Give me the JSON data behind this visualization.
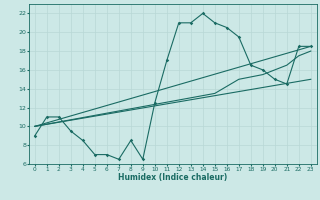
{
  "xlabel": "Humidex (Indice chaleur)",
  "bg_color": "#cce8e6",
  "line_color": "#1a6b63",
  "grid_color": "#b8d8d6",
  "xlim": [
    -0.5,
    23.5
  ],
  "ylim": [
    6,
    23
  ],
  "xticks": [
    0,
    1,
    2,
    3,
    4,
    5,
    6,
    7,
    8,
    9,
    10,
    11,
    12,
    13,
    14,
    15,
    16,
    17,
    18,
    19,
    20,
    21,
    22,
    23
  ],
  "yticks": [
    6,
    8,
    10,
    12,
    14,
    16,
    18,
    20,
    22
  ],
  "line1_x": [
    0,
    1,
    2,
    3,
    4,
    5,
    6,
    7,
    8,
    9,
    10,
    11,
    12,
    13,
    14,
    15,
    16,
    17,
    18,
    19,
    20,
    21,
    22,
    23
  ],
  "line1_y": [
    9,
    11,
    11,
    9.5,
    8.5,
    7,
    7,
    6.5,
    8.5,
    6.5,
    12.5,
    17,
    21,
    21,
    22,
    21,
    20.5,
    19.5,
    16.5,
    16,
    15,
    14.5,
    18.5,
    18.5
  ],
  "line2_x": [
    0,
    23
  ],
  "line2_y": [
    10,
    15
  ],
  "line3_x": [
    0,
    23
  ],
  "line3_y": [
    10,
    18.5
  ],
  "line4_x": [
    0,
    15,
    17,
    19,
    20,
    21,
    22,
    23
  ],
  "line4_y": [
    10,
    13.5,
    15,
    15.5,
    16,
    16.5,
    17.5,
    18
  ]
}
